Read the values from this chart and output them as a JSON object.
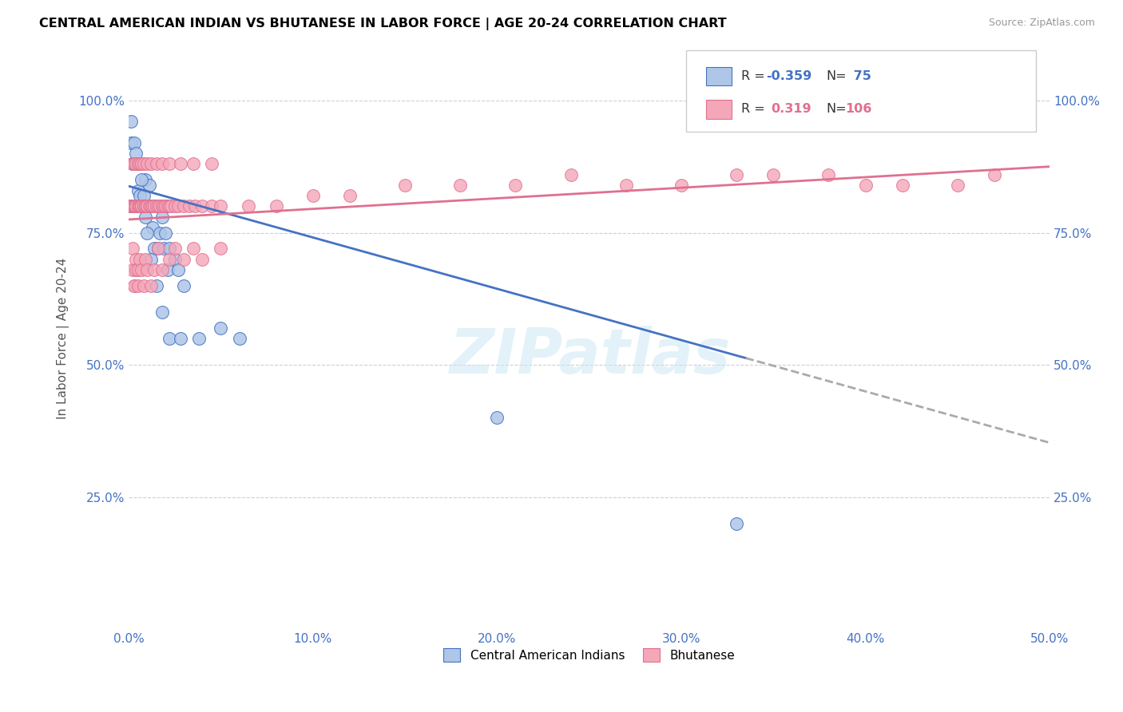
{
  "title": "CENTRAL AMERICAN INDIAN VS BHUTANESE IN LABOR FORCE | AGE 20-24 CORRELATION CHART",
  "source": "Source: ZipAtlas.com",
  "ylabel": "In Labor Force | Age 20-24",
  "xlim": [
    0.0,
    0.5
  ],
  "ylim": [
    0.0,
    1.1
  ],
  "xtick_labels": [
    "0.0%",
    "10.0%",
    "20.0%",
    "30.0%",
    "40.0%",
    "50.0%"
  ],
  "xtick_vals": [
    0.0,
    0.1,
    0.2,
    0.3,
    0.4,
    0.5
  ],
  "ytick_labels": [
    "25.0%",
    "50.0%",
    "75.0%",
    "100.0%"
  ],
  "ytick_vals": [
    0.25,
    0.5,
    0.75,
    1.0
  ],
  "blue_R": "-0.359",
  "blue_N": "75",
  "pink_R": "0.319",
  "pink_N": "106",
  "blue_color": "#aec6e8",
  "pink_color": "#f4a7b9",
  "blue_line_color": "#4472c4",
  "pink_line_color": "#e07090",
  "watermark": "ZIPatlas",
  "legend_label_blue": "Central American Indians",
  "legend_label_pink": "Bhutanese",
  "blue_line_x0": 0.0,
  "blue_line_y0": 0.838,
  "blue_line_x1": 0.335,
  "blue_line_y1": 0.513,
  "blue_line_dash_x0": 0.335,
  "blue_line_dash_y0": 0.513,
  "blue_line_dash_x1": 0.5,
  "blue_line_dash_y1": 0.353,
  "pink_line_x0": 0.0,
  "pink_line_y0": 0.775,
  "pink_line_x1": 0.5,
  "pink_line_y1": 0.875,
  "blue_x": [
    0.001,
    0.001,
    0.001,
    0.001,
    0.002,
    0.002,
    0.002,
    0.002,
    0.003,
    0.003,
    0.003,
    0.003,
    0.003,
    0.003,
    0.004,
    0.004,
    0.004,
    0.004,
    0.004,
    0.005,
    0.005,
    0.005,
    0.005,
    0.006,
    0.006,
    0.006,
    0.006,
    0.007,
    0.007,
    0.008,
    0.008,
    0.009,
    0.009,
    0.01,
    0.01,
    0.011,
    0.012,
    0.013,
    0.014,
    0.015,
    0.016,
    0.017,
    0.018,
    0.019,
    0.02,
    0.021,
    0.022,
    0.025,
    0.027,
    0.03,
    0.001,
    0.001,
    0.002,
    0.002,
    0.003,
    0.003,
    0.004,
    0.004,
    0.005,
    0.005,
    0.006,
    0.007,
    0.008,
    0.009,
    0.01,
    0.012,
    0.015,
    0.018,
    0.022,
    0.028,
    0.038,
    0.05,
    0.06,
    0.2,
    0.33
  ],
  "blue_y": [
    0.8,
    0.8,
    0.8,
    0.8,
    0.8,
    0.8,
    0.8,
    0.8,
    0.8,
    0.8,
    0.8,
    0.8,
    0.8,
    0.8,
    0.8,
    0.8,
    0.8,
    0.8,
    0.8,
    0.8,
    0.8,
    0.8,
    0.83,
    0.8,
    0.82,
    0.8,
    0.8,
    0.8,
    0.8,
    0.8,
    0.8,
    0.85,
    0.8,
    0.8,
    0.8,
    0.84,
    0.8,
    0.76,
    0.72,
    0.8,
    0.72,
    0.75,
    0.78,
    0.72,
    0.75,
    0.68,
    0.72,
    0.7,
    0.68,
    0.65,
    0.92,
    0.96,
    0.88,
    0.88,
    0.92,
    0.88,
    0.88,
    0.9,
    0.88,
    0.88,
    0.88,
    0.85,
    0.82,
    0.78,
    0.75,
    0.7,
    0.65,
    0.6,
    0.55,
    0.55,
    0.55,
    0.57,
    0.55,
    0.4,
    0.2
  ],
  "pink_x": [
    0.001,
    0.001,
    0.001,
    0.002,
    0.002,
    0.002,
    0.003,
    0.003,
    0.003,
    0.004,
    0.004,
    0.004,
    0.004,
    0.005,
    0.005,
    0.005,
    0.006,
    0.006,
    0.006,
    0.007,
    0.007,
    0.007,
    0.008,
    0.008,
    0.009,
    0.009,
    0.01,
    0.01,
    0.011,
    0.012,
    0.012,
    0.013,
    0.014,
    0.015,
    0.016,
    0.017,
    0.018,
    0.019,
    0.02,
    0.021,
    0.022,
    0.023,
    0.025,
    0.027,
    0.03,
    0.033,
    0.036,
    0.04,
    0.045,
    0.05,
    0.002,
    0.002,
    0.003,
    0.003,
    0.004,
    0.004,
    0.005,
    0.005,
    0.006,
    0.007,
    0.008,
    0.009,
    0.01,
    0.012,
    0.014,
    0.016,
    0.018,
    0.022,
    0.025,
    0.03,
    0.035,
    0.04,
    0.05,
    0.065,
    0.08,
    0.1,
    0.12,
    0.15,
    0.18,
    0.21,
    0.24,
    0.27,
    0.3,
    0.33,
    0.35,
    0.38,
    0.4,
    0.42,
    0.45,
    0.47,
    0.002,
    0.003,
    0.003,
    0.004,
    0.005,
    0.006,
    0.007,
    0.008,
    0.01,
    0.012,
    0.015,
    0.018,
    0.022,
    0.028,
    0.035,
    0.045
  ],
  "pink_y": [
    0.8,
    0.8,
    0.8,
    0.8,
    0.8,
    0.8,
    0.8,
    0.8,
    0.8,
    0.8,
    0.8,
    0.8,
    0.8,
    0.8,
    0.8,
    0.8,
    0.8,
    0.8,
    0.8,
    0.8,
    0.8,
    0.8,
    0.8,
    0.8,
    0.8,
    0.8,
    0.8,
    0.8,
    0.8,
    0.8,
    0.8,
    0.8,
    0.8,
    0.8,
    0.8,
    0.8,
    0.8,
    0.8,
    0.8,
    0.8,
    0.8,
    0.8,
    0.8,
    0.8,
    0.8,
    0.8,
    0.8,
    0.8,
    0.8,
    0.8,
    0.72,
    0.68,
    0.65,
    0.65,
    0.7,
    0.68,
    0.65,
    0.68,
    0.7,
    0.68,
    0.65,
    0.7,
    0.68,
    0.65,
    0.68,
    0.72,
    0.68,
    0.7,
    0.72,
    0.7,
    0.72,
    0.7,
    0.72,
    0.8,
    0.8,
    0.82,
    0.82,
    0.84,
    0.84,
    0.84,
    0.86,
    0.84,
    0.84,
    0.86,
    0.86,
    0.86,
    0.84,
    0.84,
    0.84,
    0.86,
    0.88,
    0.88,
    0.88,
    0.88,
    0.88,
    0.88,
    0.88,
    0.88,
    0.88,
    0.88,
    0.88,
    0.88,
    0.88,
    0.88,
    0.88,
    0.88
  ]
}
